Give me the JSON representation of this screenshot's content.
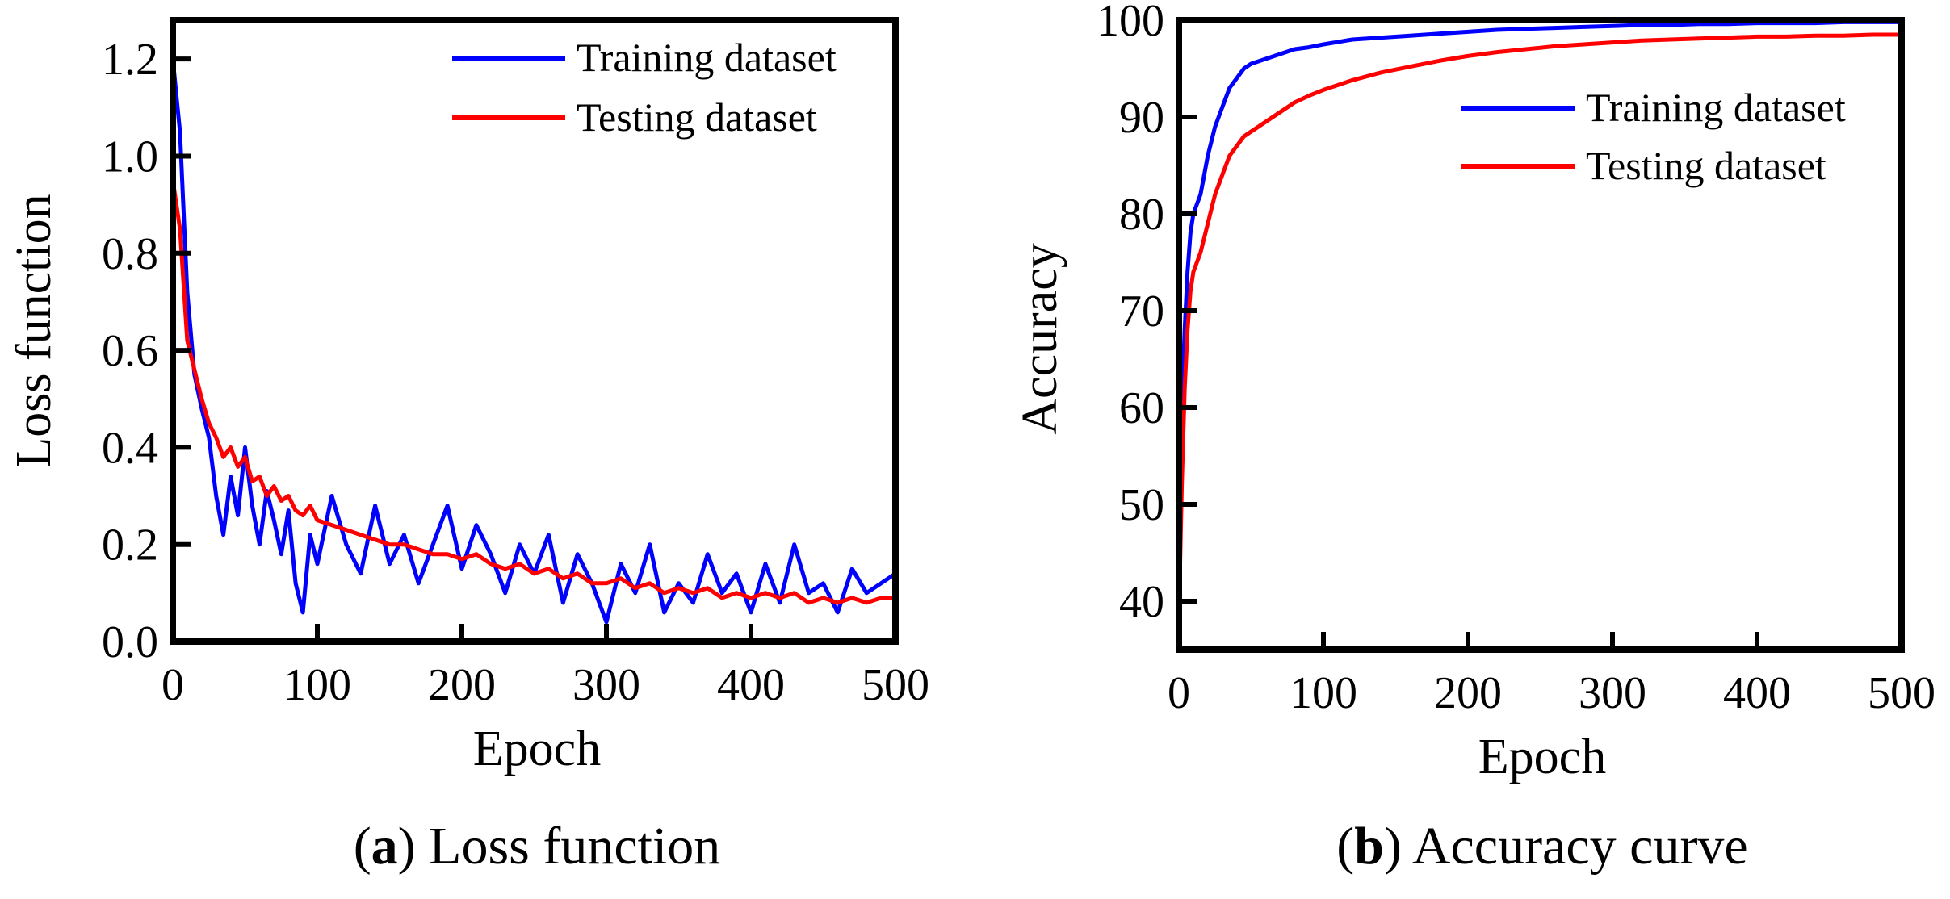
{
  "figure": {
    "panel_a_label": "a",
    "panel_a_caption": "Loss function",
    "panel_b_label": "b",
    "panel_b_caption": "Accuracy curve"
  },
  "colors": {
    "training": "#0000ff",
    "testing": "#ff0000",
    "axis": "#000000"
  },
  "chart_data": [
    {
      "type": "line",
      "title": "",
      "xlabel": "Epoch",
      "ylabel": "Loss function",
      "xlim": [
        0,
        500
      ],
      "ylim": [
        0,
        1.28
      ],
      "xticks": [
        0,
        100,
        200,
        300,
        400,
        500
      ],
      "xtick_labels": [
        "0",
        "100",
        "200",
        "300",
        "400",
        "500"
      ],
      "yticks": [
        0,
        0.2,
        0.4,
        0.6,
        0.8,
        1.0,
        1.2
      ],
      "ytick_labels": [
        "0.0",
        "0.2",
        "0.4",
        "0.6",
        "0.8",
        "1.0",
        "1.2"
      ],
      "legend": [
        "Training dataset",
        "Testing dataset"
      ],
      "legend_position": "top-right",
      "series": [
        {
          "name": "Training dataset",
          "color": "#0000ff",
          "x": [
            0,
            5,
            10,
            15,
            20,
            25,
            30,
            35,
            40,
            45,
            50,
            55,
            60,
            65,
            70,
            75,
            80,
            85,
            90,
            95,
            100,
            110,
            120,
            130,
            140,
            150,
            160,
            170,
            180,
            190,
            200,
            210,
            220,
            230,
            240,
            250,
            260,
            270,
            280,
            290,
            300,
            310,
            320,
            330,
            340,
            350,
            360,
            370,
            380,
            390,
            400,
            410,
            420,
            430,
            440,
            450,
            460,
            470,
            480,
            490,
            500
          ],
          "y": [
            1.2,
            1.05,
            0.72,
            0.55,
            0.48,
            0.42,
            0.3,
            0.22,
            0.34,
            0.26,
            0.4,
            0.28,
            0.2,
            0.31,
            0.25,
            0.18,
            0.27,
            0.12,
            0.06,
            0.22,
            0.16,
            0.3,
            0.2,
            0.14,
            0.28,
            0.16,
            0.22,
            0.12,
            0.2,
            0.28,
            0.15,
            0.24,
            0.18,
            0.1,
            0.2,
            0.14,
            0.22,
            0.08,
            0.18,
            0.12,
            0.04,
            0.16,
            0.1,
            0.2,
            0.06,
            0.12,
            0.08,
            0.18,
            0.1,
            0.14,
            0.06,
            0.16,
            0.08,
            0.2,
            0.1,
            0.12,
            0.06,
            0.15,
            0.1,
            0.12,
            0.14
          ]
        },
        {
          "name": "Testing dataset",
          "color": "#ff0000",
          "x": [
            0,
            5,
            10,
            15,
            20,
            25,
            30,
            35,
            40,
            45,
            50,
            55,
            60,
            65,
            70,
            75,
            80,
            85,
            90,
            95,
            100,
            110,
            120,
            130,
            140,
            150,
            160,
            170,
            180,
            190,
            200,
            210,
            220,
            230,
            240,
            250,
            260,
            270,
            280,
            290,
            300,
            310,
            320,
            330,
            340,
            350,
            360,
            370,
            380,
            390,
            400,
            410,
            420,
            430,
            440,
            450,
            460,
            470,
            480,
            490,
            500
          ],
          "y": [
            0.95,
            0.85,
            0.62,
            0.56,
            0.5,
            0.45,
            0.42,
            0.38,
            0.4,
            0.36,
            0.38,
            0.33,
            0.34,
            0.3,
            0.32,
            0.29,
            0.3,
            0.27,
            0.26,
            0.28,
            0.25,
            0.24,
            0.23,
            0.22,
            0.21,
            0.2,
            0.2,
            0.19,
            0.18,
            0.18,
            0.17,
            0.18,
            0.16,
            0.15,
            0.16,
            0.14,
            0.15,
            0.13,
            0.14,
            0.12,
            0.12,
            0.13,
            0.11,
            0.12,
            0.1,
            0.11,
            0.1,
            0.11,
            0.09,
            0.1,
            0.09,
            0.1,
            0.09,
            0.1,
            0.08,
            0.09,
            0.08,
            0.09,
            0.08,
            0.09,
            0.09
          ]
        }
      ]
    },
    {
      "type": "line",
      "title": "",
      "xlabel": "Epoch",
      "ylabel": "Accuracy",
      "xlim": [
        0,
        500
      ],
      "ylim": [
        35,
        100
      ],
      "xticks": [
        0,
        100,
        200,
        300,
        400,
        500
      ],
      "xtick_labels": [
        "0",
        "100",
        "200",
        "300",
        "400",
        "500"
      ],
      "yticks": [
        40,
        50,
        60,
        70,
        80,
        90,
        100
      ],
      "ytick_labels": [
        "40",
        "50",
        "60",
        "70",
        "80",
        "90",
        "100"
      ],
      "legend": [
        "Training dataset",
        "Testing dataset"
      ],
      "legend_position": "top-right",
      "series": [
        {
          "name": "Training dataset",
          "color": "#0000ff",
          "x": [
            0,
            2,
            4,
            6,
            8,
            10,
            15,
            20,
            25,
            30,
            35,
            40,
            45,
            50,
            60,
            70,
            80,
            90,
            100,
            120,
            140,
            160,
            180,
            200,
            220,
            240,
            260,
            280,
            300,
            320,
            340,
            360,
            380,
            400,
            420,
            440,
            460,
            480,
            500
          ],
          "y": [
            42,
            60,
            68,
            74,
            78,
            80,
            82,
            86,
            89,
            91,
            93,
            94,
            95,
            95.5,
            96,
            96.5,
            97,
            97.2,
            97.5,
            98,
            98.2,
            98.4,
            98.6,
            98.8,
            99,
            99.1,
            99.2,
            99.3,
            99.4,
            99.5,
            99.5,
            99.6,
            99.6,
            99.7,
            99.7,
            99.7,
            99.8,
            99.8,
            99.8
          ]
        },
        {
          "name": "Testing dataset",
          "color": "#ff0000",
          "x": [
            0,
            2,
            4,
            6,
            8,
            10,
            15,
            20,
            25,
            30,
            35,
            40,
            45,
            50,
            60,
            70,
            80,
            90,
            100,
            120,
            140,
            160,
            180,
            200,
            220,
            240,
            260,
            280,
            300,
            320,
            340,
            360,
            380,
            400,
            420,
            440,
            460,
            480,
            500
          ],
          "y": [
            38,
            52,
            62,
            68,
            72,
            74,
            76,
            79,
            82,
            84,
            86,
            87,
            88,
            88.5,
            89.5,
            90.5,
            91.5,
            92.2,
            92.8,
            93.8,
            94.6,
            95.2,
            95.8,
            96.3,
            96.7,
            97,
            97.3,
            97.5,
            97.7,
            97.9,
            98,
            98.1,
            98.2,
            98.3,
            98.3,
            98.4,
            98.4,
            98.5,
            98.5
          ]
        }
      ]
    }
  ]
}
